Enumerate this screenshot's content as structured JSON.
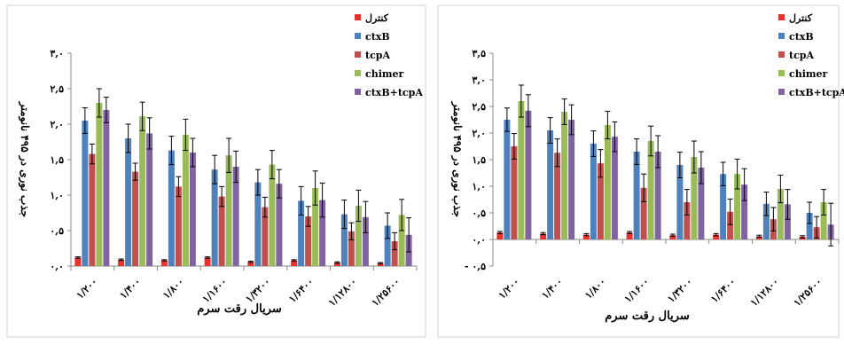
{
  "colors": {
    "control": "#e8322e",
    "ctxB": "#4f81bd",
    "tcpA": "#c0504d",
    "chimer": "#9bbb59",
    "ctxB_tcpA": "#8064a2",
    "error_bar": "#000000",
    "axis": "#8a8a8a",
    "frame": "#d0d0d0"
  },
  "chart_data": [
    {
      "type": "bar",
      "xlabel": "سریال رقت سرم",
      "ylabel": "جذب نوری در ۴۹۵ نانومتر",
      "ylim": [
        0,
        3.0
      ],
      "y_ticks": [
        "۰,۰",
        "۰,۵",
        "۱,۰",
        "۱,۵",
        "۲,۰",
        "۲,۵",
        "۳,۰"
      ],
      "legend_position": "right",
      "grid": false,
      "categories": [
        "۱/۲۰۰",
        "۱/۴۰۰",
        "۱/۸۰۰",
        "۱/۱۶۰۰",
        "۱/۳۲۰۰",
        "۱/۶۴۰۰",
        "۱/۱۲۸۰۰",
        "۱/۲۵۶۰۰"
      ],
      "series": [
        {
          "name": "کنترل",
          "color_key": "control",
          "values": [
            0.12,
            0.09,
            0.08,
            0.12,
            0.06,
            0.08,
            0.05,
            0.04
          ],
          "errors": [
            0.01,
            0.01,
            0.01,
            0.01,
            0.01,
            0.01,
            0.01,
            0.01
          ]
        },
        {
          "name": "ctxB",
          "color_key": "ctxB",
          "values": [
            2.05,
            1.8,
            1.63,
            1.36,
            1.18,
            0.92,
            0.73,
            0.57
          ],
          "errors": [
            0.18,
            0.2,
            0.2,
            0.2,
            0.18,
            0.2,
            0.2,
            0.18
          ]
        },
        {
          "name": "tcpA",
          "color_key": "tcpA",
          "values": [
            1.58,
            1.33,
            1.12,
            0.98,
            0.83,
            0.7,
            0.49,
            0.35
          ],
          "errors": [
            0.14,
            0.12,
            0.14,
            0.14,
            0.14,
            0.14,
            0.12,
            0.12
          ]
        },
        {
          "name": "chimer",
          "color_key": "chimer",
          "values": [
            2.3,
            2.11,
            1.85,
            1.56,
            1.43,
            1.1,
            0.85,
            0.72
          ],
          "errors": [
            0.2,
            0.2,
            0.22,
            0.24,
            0.2,
            0.24,
            0.22,
            0.22
          ]
        },
        {
          "name": "ctxB+tcpA",
          "color_key": "ctxB_tcpA",
          "values": [
            2.2,
            1.87,
            1.6,
            1.4,
            1.16,
            0.93,
            0.69,
            0.44
          ],
          "errors": [
            0.18,
            0.22,
            0.2,
            0.22,
            0.2,
            0.24,
            0.22,
            0.24
          ]
        }
      ]
    },
    {
      "type": "bar",
      "xlabel": "سریال رقت سرم",
      "ylabel": "جذب نوری در ۴۹۵ نانومتر",
      "ylim": [
        -0.5,
        3.5
      ],
      "y_ticks": [
        "- ۰,۵",
        "۰,۰",
        "۰,۵",
        "۱,۰",
        "۱,۵",
        "۲,۰",
        "۲,۵",
        "۳,۰",
        "۳,۵"
      ],
      "legend_position": "right",
      "grid": false,
      "categories": [
        "۱/۲۰۰",
        "۱/۴۰۰",
        "۱/۸۰۰",
        "۱/۱۶۰۰",
        "۱/۳۲۰۰",
        "۱/۶۴۰۰",
        "۱/۱۲۸۰۰",
        "۱/۲۵۶۰۰"
      ],
      "series": [
        {
          "name": "کنترل",
          "color_key": "control",
          "values": [
            0.13,
            0.11,
            0.09,
            0.13,
            0.08,
            0.09,
            0.06,
            0.05
          ],
          "errors": [
            0.02,
            0.02,
            0.02,
            0.02,
            0.02,
            0.02,
            0.02,
            0.02
          ]
        },
        {
          "name": "ctxB",
          "color_key": "ctxB",
          "values": [
            2.25,
            2.05,
            1.8,
            1.65,
            1.4,
            1.23,
            0.67,
            0.5
          ],
          "errors": [
            0.22,
            0.24,
            0.24,
            0.24,
            0.24,
            0.22,
            0.22,
            0.2
          ]
        },
        {
          "name": "tcpA",
          "color_key": "tcpA",
          "values": [
            1.75,
            1.63,
            1.43,
            0.97,
            0.7,
            0.52,
            0.38,
            0.23
          ],
          "errors": [
            0.24,
            0.26,
            0.26,
            0.26,
            0.24,
            0.24,
            0.22,
            0.2
          ]
        },
        {
          "name": "chimer",
          "color_key": "chimer",
          "values": [
            2.6,
            2.4,
            2.15,
            1.85,
            1.55,
            1.23,
            0.95,
            0.7
          ],
          "errors": [
            0.3,
            0.24,
            0.26,
            0.28,
            0.3,
            0.28,
            0.26,
            0.24
          ]
        },
        {
          "name": "ctxB+tcpA",
          "color_key": "ctxB_tcpA",
          "values": [
            2.42,
            2.25,
            1.93,
            1.65,
            1.35,
            1.03,
            0.66,
            0.28
          ],
          "errors": [
            0.3,
            0.28,
            0.28,
            0.3,
            0.3,
            0.3,
            0.28,
            0.4
          ]
        }
      ]
    }
  ]
}
